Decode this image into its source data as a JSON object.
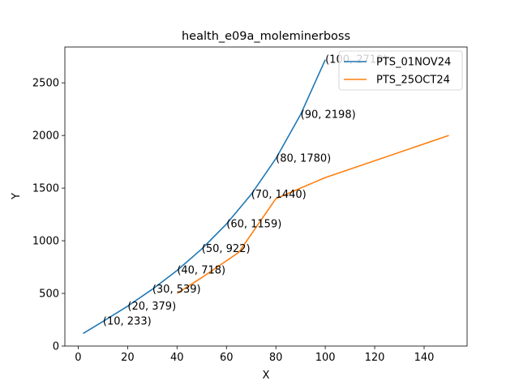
{
  "chart_data": {
    "type": "line",
    "title": "health_e09a_moleminerboss",
    "xlabel": "X",
    "ylabel": "Y",
    "xlim": [
      -5.4,
      157.4
    ],
    "ylim": [
      0,
      2840
    ],
    "xticks": [
      0,
      20,
      40,
      60,
      80,
      100,
      120,
      140
    ],
    "yticks": [
      0,
      500,
      1000,
      1500,
      2000,
      2500
    ],
    "grid": false,
    "legend_position": "top-right",
    "series": [
      {
        "name": "PTS_01NOV24",
        "color": "#1f77b4",
        "x": [
          2,
          10,
          20,
          30,
          40,
          50,
          60,
          70,
          80,
          90,
          100
        ],
        "y": [
          120,
          233,
          379,
          539,
          718,
          922,
          1159,
          1440,
          1780,
          2198,
          2719
        ]
      },
      {
        "name": "PTS_25OCT24",
        "color": "#ff7f0e",
        "x": [
          40,
          50,
          65,
          80,
          100,
          150
        ],
        "y": [
          500,
          650,
          890,
          1400,
          1600,
          2000
        ]
      }
    ],
    "annotations": [
      {
        "x": 10,
        "y": 233,
        "text": "(10, 233)"
      },
      {
        "x": 20,
        "y": 379,
        "text": "(20, 379)"
      },
      {
        "x": 30,
        "y": 539,
        "text": "(30, 539)"
      },
      {
        "x": 40,
        "y": 718,
        "text": "(40, 718)"
      },
      {
        "x": 50,
        "y": 922,
        "text": "(50, 922)"
      },
      {
        "x": 60,
        "y": 1159,
        "text": "(60, 1159)"
      },
      {
        "x": 70,
        "y": 1440,
        "text": "(70, 1440)"
      },
      {
        "x": 80,
        "y": 1780,
        "text": "(80, 1780)"
      },
      {
        "x": 90,
        "y": 2198,
        "text": "(90, 2198)"
      },
      {
        "x": 100,
        "y": 2719,
        "text": "(100, 2719)"
      }
    ]
  }
}
